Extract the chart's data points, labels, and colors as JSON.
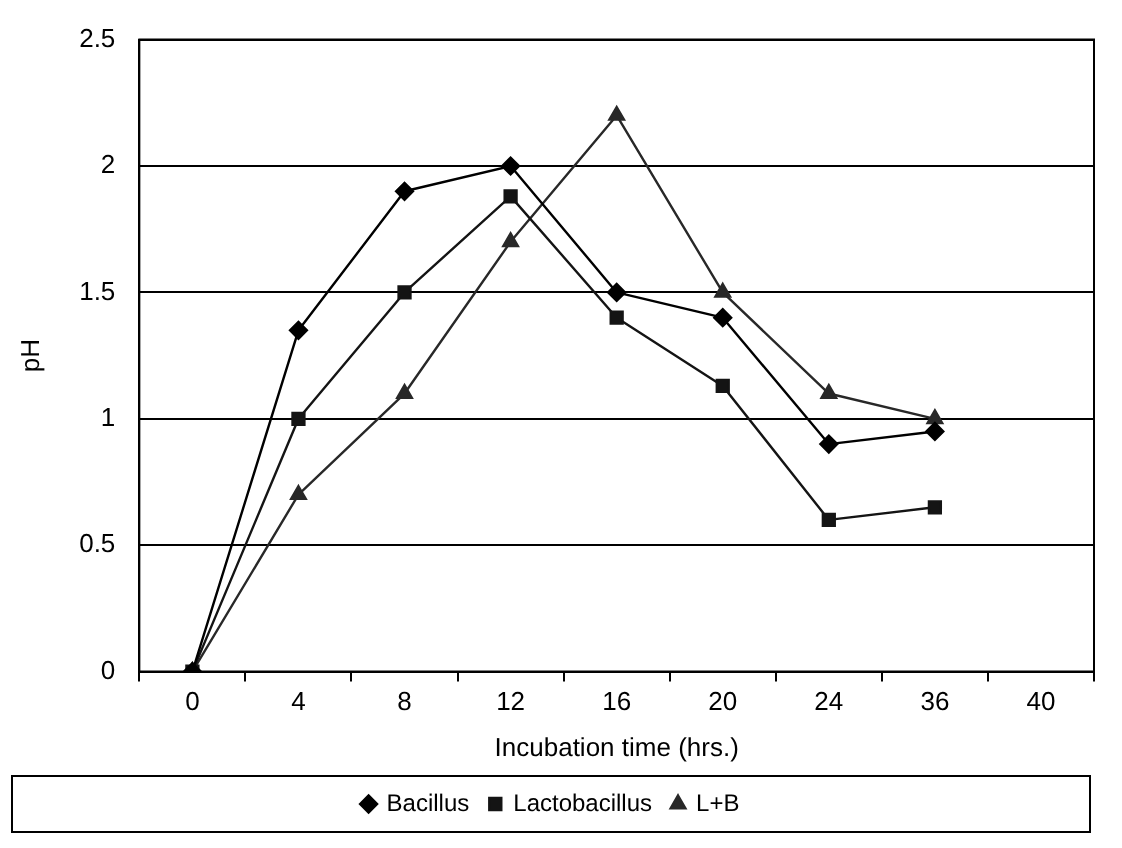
{
  "chart_data": {
    "type": "line",
    "xlabel": "Incubation time (hrs.)",
    "ylabel": "pH",
    "categories": [
      "0",
      "4",
      "8",
      "12",
      "16",
      "20",
      "24",
      "36",
      "40"
    ],
    "series": [
      {
        "name": "Bacillus",
        "color": "#000000",
        "marker": "diamond",
        "values": [
          0,
          1.35,
          1.9,
          2.0,
          1.5,
          1.4,
          0.9,
          0.95,
          null
        ]
      },
      {
        "name": "Lactobacillus",
        "color": "#141414",
        "marker": "square",
        "values": [
          0,
          1.0,
          1.5,
          1.88,
          1.4,
          1.13,
          0.6,
          0.65,
          null
        ]
      },
      {
        "name": "L+B",
        "color": "#282828",
        "marker": "triangle",
        "values": [
          0,
          0.7,
          1.1,
          1.7,
          2.2,
          1.5,
          1.1,
          1.0,
          null
        ]
      }
    ],
    "ylim": [
      0,
      2.5
    ],
    "yticks": [
      0,
      0.5,
      1,
      1.5,
      2,
      2.5
    ],
    "grid": "y",
    "legend": "bottom",
    "line_style": "solid"
  }
}
